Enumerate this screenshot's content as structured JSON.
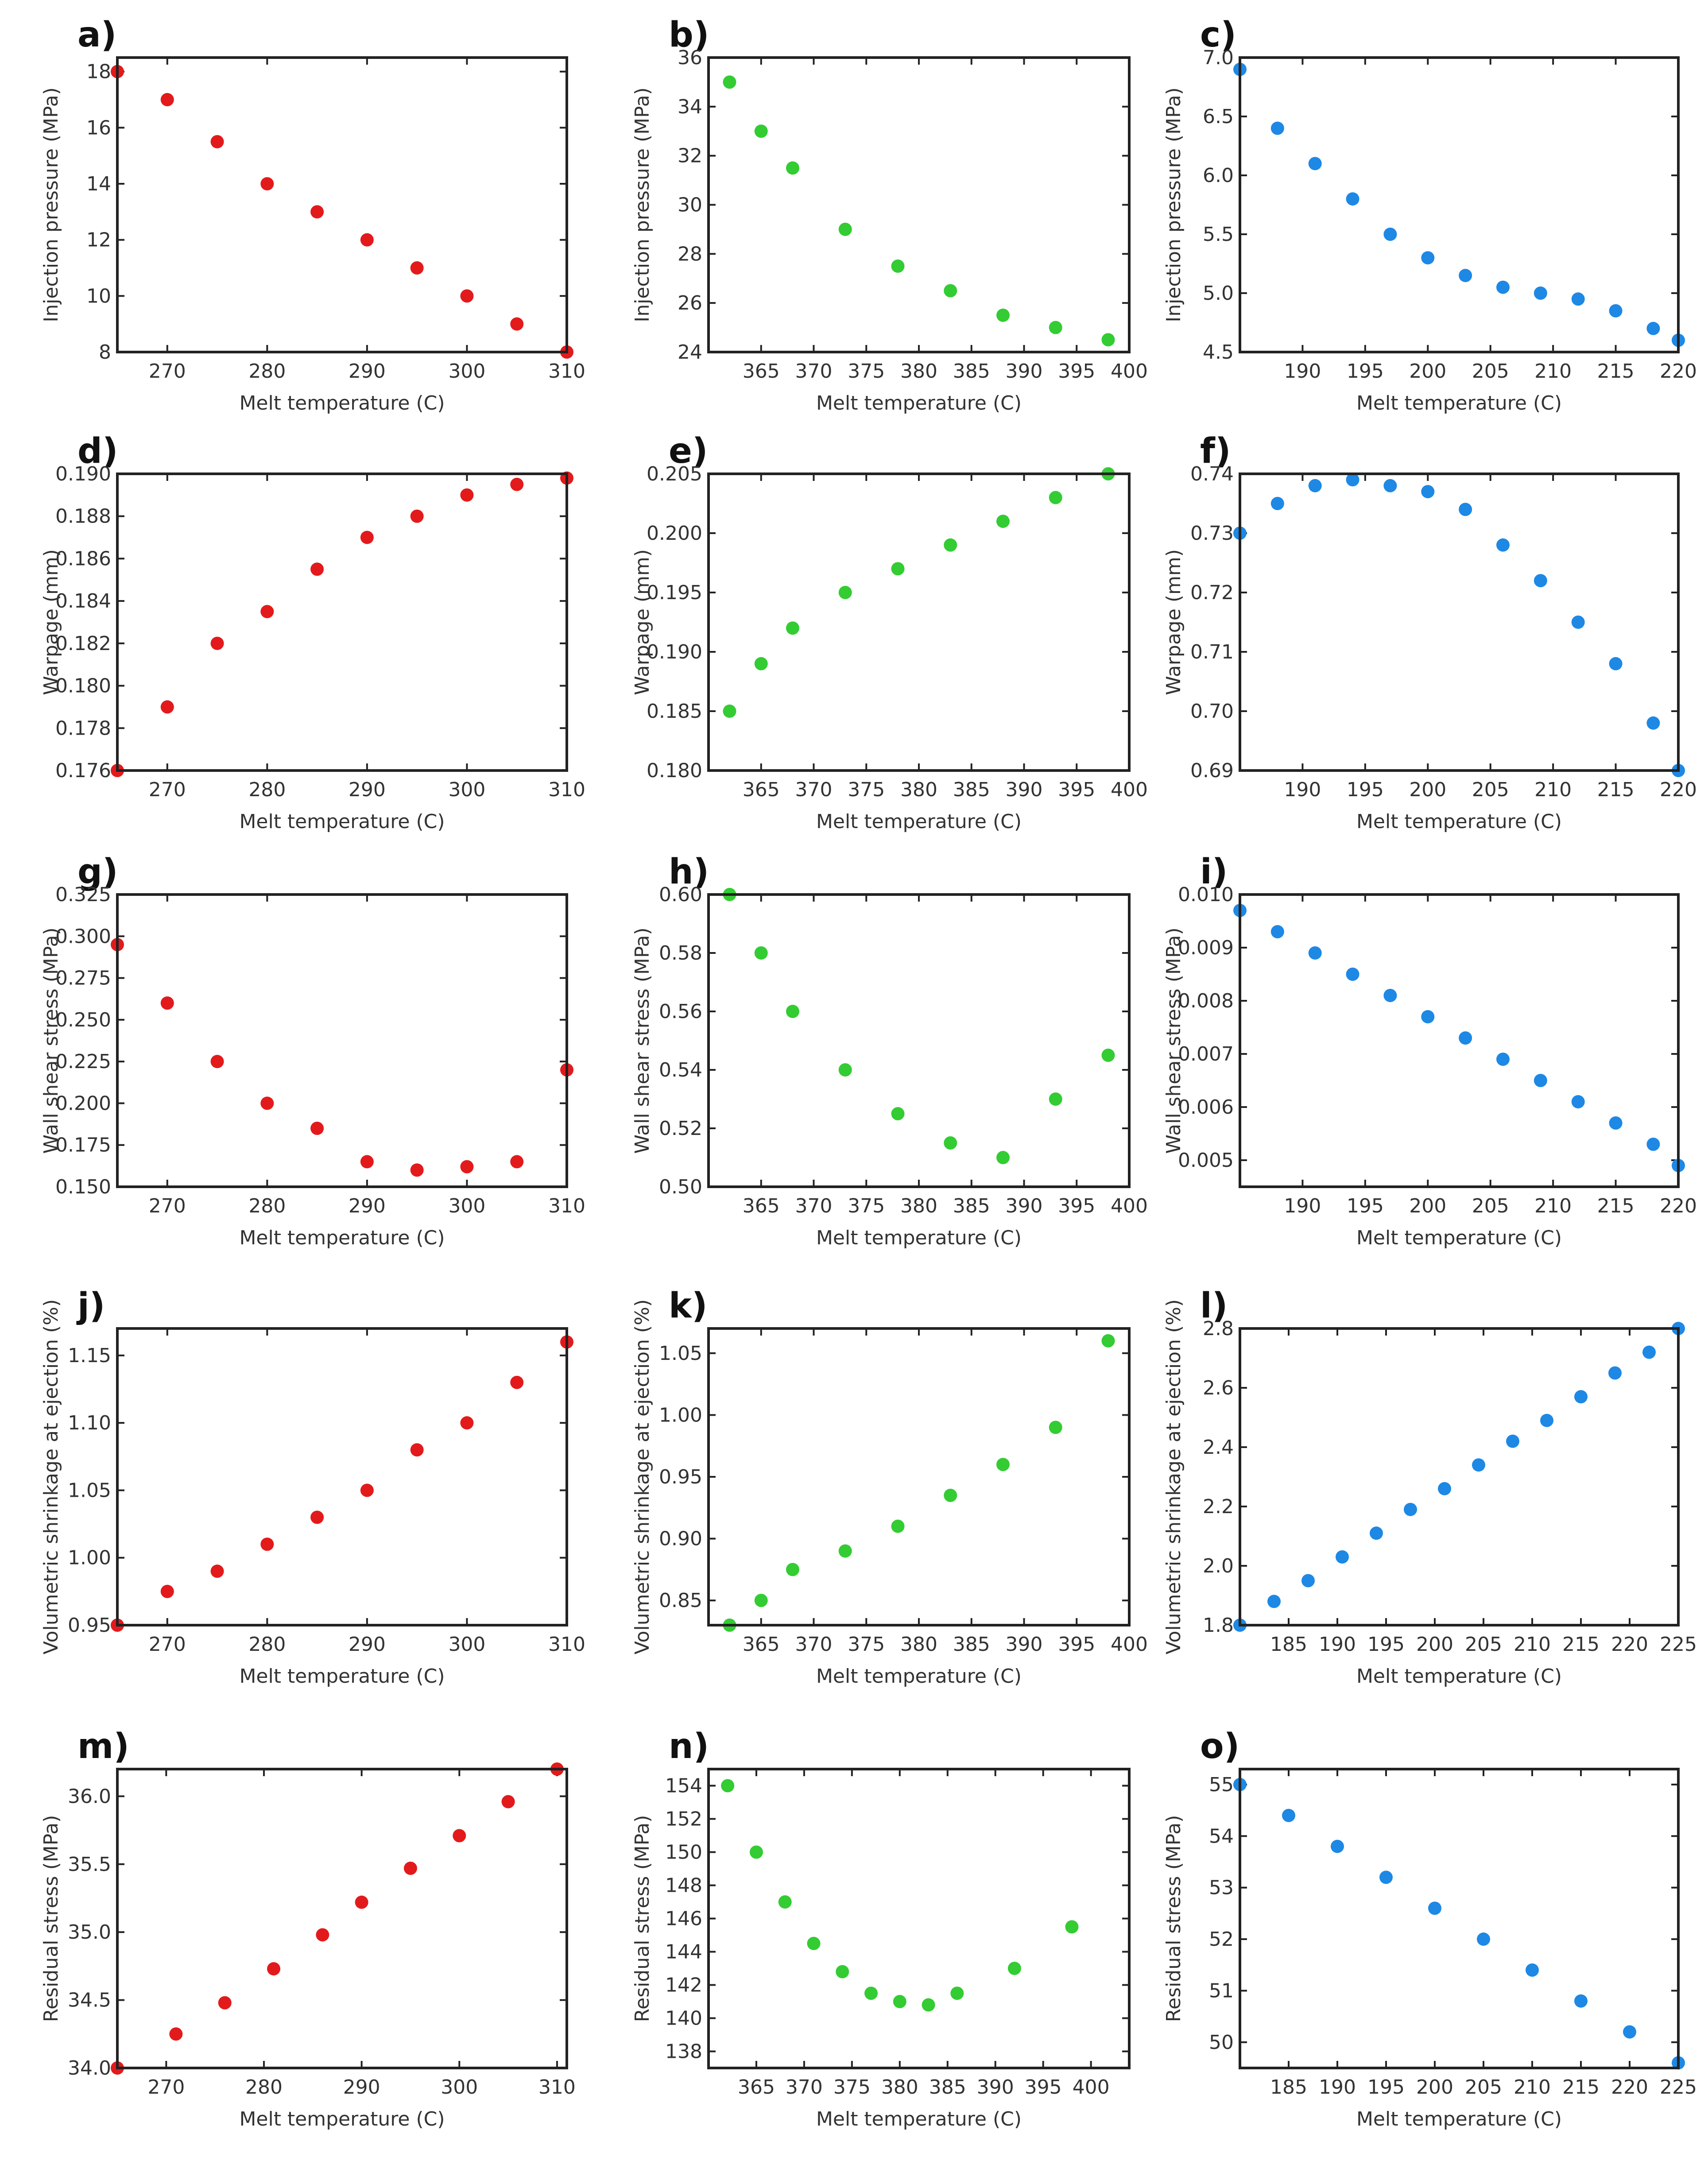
{
  "colors": {
    "series_a": "#e31a1c",
    "series_b": "#33cc33",
    "series_c": "#1e88e5"
  },
  "chart_data": [
    {
      "panel": "a)",
      "type": "scatter",
      "color": "#e31a1c",
      "xlabel": "Melt temperature (C)",
      "ylabel": "Injection pressure (MPa)",
      "xlim": [
        265,
        310
      ],
      "ylim": [
        8,
        18.5
      ],
      "xticks": [
        270,
        280,
        290,
        300,
        310
      ],
      "yticks": [
        8,
        10,
        12,
        14,
        16,
        18
      ],
      "x": [
        265,
        270,
        275,
        280,
        285,
        290,
        295,
        300,
        305,
        310
      ],
      "y": [
        18,
        17,
        15.5,
        14,
        13,
        12,
        11,
        10,
        9,
        8
      ]
    },
    {
      "panel": "b)",
      "type": "scatter",
      "color": "#33cc33",
      "xlabel": "Melt temperature (C)",
      "ylabel": "Injection pressure (MPa)",
      "xlim": [
        360,
        400
      ],
      "ylim": [
        24,
        36
      ],
      "xticks": [
        365,
        370,
        375,
        380,
        385,
        390,
        395,
        400
      ],
      "yticks": [
        24,
        26,
        28,
        30,
        32,
        34,
        36
      ],
      "x": [
        362,
        365,
        368,
        373,
        378,
        383,
        388,
        393,
        398
      ],
      "y": [
        35,
        33,
        31.5,
        29,
        27.5,
        26.5,
        25.5,
        25,
        24.5
      ]
    },
    {
      "panel": "c)",
      "type": "scatter",
      "color": "#1e88e5",
      "xlabel": "Melt temperature (C)",
      "ylabel": "Injection pressure (MPa)",
      "xlim": [
        185,
        220
      ],
      "ylim": [
        4.5,
        7.0
      ],
      "xticks": [
        190,
        195,
        200,
        205,
        210,
        215,
        220
      ],
      "yticks": [
        4.5,
        5.0,
        5.5,
        6.0,
        6.5,
        7.0
      ],
      "x": [
        185,
        188,
        191,
        194,
        197,
        200,
        203,
        206,
        209,
        212,
        215,
        218,
        220
      ],
      "y": [
        6.9,
        6.4,
        6.1,
        5.8,
        5.5,
        5.3,
        5.15,
        5.05,
        5.0,
        4.95,
        4.85,
        4.7,
        4.6
      ]
    },
    {
      "panel": "d)",
      "type": "scatter",
      "color": "#e31a1c",
      "xlabel": "Melt temperature (C)",
      "ylabel": "Warpage (mm)",
      "xlim": [
        265,
        310
      ],
      "ylim": [
        0.176,
        0.19
      ],
      "xticks": [
        270,
        280,
        290,
        300,
        310
      ],
      "yticks": [
        0.176,
        0.178,
        0.18,
        0.182,
        0.184,
        0.186,
        0.188,
        0.19
      ],
      "x": [
        265,
        270,
        275,
        280,
        285,
        290,
        295,
        300,
        305,
        310
      ],
      "y": [
        0.176,
        0.179,
        0.182,
        0.1835,
        0.1855,
        0.187,
        0.188,
        0.189,
        0.1895,
        0.1898
      ]
    },
    {
      "panel": "e)",
      "type": "scatter",
      "color": "#33cc33",
      "xlabel": "Melt temperature (C)",
      "ylabel": "Warpage (mm)",
      "xlim": [
        360,
        400
      ],
      "ylim": [
        0.18,
        0.205
      ],
      "xticks": [
        365,
        370,
        375,
        380,
        385,
        390,
        395,
        400
      ],
      "yticks": [
        0.18,
        0.185,
        0.19,
        0.195,
        0.2,
        0.205
      ],
      "x": [
        362,
        365,
        368,
        373,
        378,
        383,
        388,
        393,
        398
      ],
      "y": [
        0.185,
        0.189,
        0.192,
        0.195,
        0.197,
        0.199,
        0.201,
        0.203,
        0.205
      ]
    },
    {
      "panel": "f)",
      "type": "scatter",
      "color": "#1e88e5",
      "xlabel": "Melt temperature (C)",
      "ylabel": "Warpage (mm)",
      "xlim": [
        185,
        220
      ],
      "ylim": [
        0.69,
        0.74
      ],
      "xticks": [
        190,
        195,
        200,
        205,
        210,
        215,
        220
      ],
      "yticks": [
        0.69,
        0.7,
        0.71,
        0.72,
        0.73,
        0.74
      ],
      "x": [
        185,
        188,
        191,
        194,
        197,
        200,
        203,
        206,
        209,
        212,
        215,
        218,
        220
      ],
      "y": [
        0.73,
        0.735,
        0.738,
        0.739,
        0.738,
        0.737,
        0.734,
        0.728,
        0.722,
        0.715,
        0.708,
        0.698,
        0.69
      ]
    },
    {
      "panel": "g)",
      "type": "scatter",
      "color": "#e31a1c",
      "xlabel": "Melt temperature (C)",
      "ylabel": "Wall shear stress (MPa)",
      "xlim": [
        265,
        310
      ],
      "ylim": [
        0.15,
        0.325
      ],
      "xticks": [
        270,
        280,
        290,
        300,
        310
      ],
      "yticks": [
        0.15,
        0.175,
        0.2,
        0.225,
        0.25,
        0.275,
        0.3,
        0.325
      ],
      "x": [
        265,
        270,
        275,
        280,
        285,
        290,
        295,
        300,
        305,
        310
      ],
      "y": [
        0.295,
        0.26,
        0.225,
        0.2,
        0.185,
        0.165,
        0.16,
        0.162,
        0.165,
        0.22
      ]
    },
    {
      "panel": "h)",
      "type": "scatter",
      "color": "#33cc33",
      "xlabel": "Melt temperature (C)",
      "ylabel": "Wall shear stress (MPa)",
      "xlim": [
        360,
        400
      ],
      "ylim": [
        0.5,
        0.6
      ],
      "xticks": [
        365,
        370,
        375,
        380,
        385,
        390,
        395,
        400
      ],
      "yticks": [
        0.5,
        0.52,
        0.54,
        0.56,
        0.58,
        0.6
      ],
      "x": [
        362,
        365,
        368,
        373,
        378,
        383,
        388,
        393,
        398
      ],
      "y": [
        0.6,
        0.58,
        0.56,
        0.54,
        0.525,
        0.515,
        0.51,
        0.53,
        0.545
      ]
    },
    {
      "panel": "i)",
      "type": "scatter",
      "color": "#1e88e5",
      "xlabel": "Melt temperature (C)",
      "ylabel": "Wall shear stress (MPa)",
      "xlim": [
        185,
        220
      ],
      "ylim": [
        0.0045,
        0.01
      ],
      "xticks": [
        190,
        195,
        200,
        205,
        210,
        215,
        220
      ],
      "yticks": [
        0.005,
        0.006,
        0.007,
        0.008,
        0.009,
        0.01
      ],
      "x": [
        185,
        188,
        191,
        194,
        197,
        200,
        203,
        206,
        209,
        212,
        215,
        218,
        220
      ],
      "y": [
        0.0097,
        0.0093,
        0.0089,
        0.0085,
        0.0081,
        0.0077,
        0.0073,
        0.0069,
        0.0065,
        0.0061,
        0.0057,
        0.0053,
        0.0049
      ]
    },
    {
      "panel": "j)",
      "type": "scatter",
      "color": "#e31a1c",
      "xlabel": "Melt temperature (C)",
      "ylabel": "Volumetric shrinkage at ejection (%)",
      "xlim": [
        265,
        310
      ],
      "ylim": [
        0.95,
        1.17
      ],
      "xticks": [
        270,
        280,
        290,
        300,
        310
      ],
      "yticks": [
        0.95,
        1.0,
        1.05,
        1.1,
        1.15
      ],
      "x": [
        265,
        270,
        275,
        280,
        285,
        290,
        295,
        300,
        305,
        310
      ],
      "y": [
        0.95,
        0.975,
        0.99,
        1.01,
        1.03,
        1.05,
        1.08,
        1.1,
        1.13,
        1.16
      ]
    },
    {
      "panel": "k)",
      "type": "scatter",
      "color": "#33cc33",
      "xlabel": "Melt temperature (C)",
      "ylabel": "Volumetric shrinkage at ejection (%)",
      "xlim": [
        360,
        400
      ],
      "ylim": [
        0.83,
        1.07
      ],
      "xticks": [
        365,
        370,
        375,
        380,
        385,
        390,
        395,
        400
      ],
      "yticks": [
        0.85,
        0.9,
        0.95,
        1.0,
        1.05
      ],
      "x": [
        362,
        365,
        368,
        373,
        378,
        383,
        388,
        393,
        398
      ],
      "y": [
        0.83,
        0.85,
        0.875,
        0.89,
        0.91,
        0.935,
        0.96,
        0.99,
        1.06
      ]
    },
    {
      "panel": "l)",
      "type": "scatter",
      "color": "#1e88e5",
      "xlabel": "Melt temperature (C)",
      "ylabel": "Volumetric shrinkage at ejection (%)",
      "xlim": [
        180,
        225
      ],
      "ylim": [
        1.8,
        2.8
      ],
      "xticks": [
        185,
        190,
        195,
        200,
        205,
        210,
        215,
        220,
        225
      ],
      "yticks": [
        1.8,
        2.0,
        2.2,
        2.4,
        2.6,
        2.8
      ],
      "x": [
        180,
        183.5,
        187,
        190.5,
        194,
        197.5,
        201,
        204.5,
        208,
        211.5,
        215,
        218.5,
        222,
        225
      ],
      "y": [
        1.8,
        1.88,
        1.95,
        2.03,
        2.11,
        2.19,
        2.26,
        2.34,
        2.42,
        2.49,
        2.57,
        2.65,
        2.72,
        2.8
      ]
    },
    {
      "panel": "m)",
      "type": "scatter",
      "color": "#e31a1c",
      "xlabel": "Melt temperature (C)",
      "ylabel": "Residual stress (MPa)",
      "xlim": [
        265,
        311
      ],
      "ylim": [
        34,
        36.2
      ],
      "xticks": [
        270,
        280,
        290,
        300,
        310
      ],
      "yticks": [
        34.0,
        34.5,
        35.0,
        35.5,
        36.0
      ],
      "x": [
        265,
        271,
        276,
        281,
        286,
        290,
        295,
        300,
        305,
        310
      ],
      "y": [
        34.0,
        34.25,
        34.48,
        34.73,
        34.98,
        35.22,
        35.47,
        35.71,
        35.96,
        36.2
      ]
    },
    {
      "panel": "n)",
      "type": "scatter",
      "color": "#33cc33",
      "xlabel": "Melt temperature (C)",
      "ylabel": "Residual stress (MPa)",
      "xlim": [
        360,
        404
      ],
      "ylim": [
        137,
        155
      ],
      "xticks": [
        365,
        370,
        375,
        380,
        385,
        390,
        395,
        400
      ],
      "yticks": [
        138,
        140,
        142,
        144,
        146,
        148,
        150,
        152,
        154
      ],
      "x": [
        362,
        365,
        368,
        371,
        374,
        377,
        380,
        383,
        386,
        392,
        398
      ],
      "y": [
        154,
        150,
        147,
        144.5,
        142.8,
        141.5,
        141,
        140.8,
        141.5,
        143,
        145.5
      ]
    },
    {
      "panel": "o)",
      "type": "scatter",
      "color": "#1e88e5",
      "xlabel": "Melt temperature (C)",
      "ylabel": "Residual stress (MPa)",
      "xlim": [
        180,
        225
      ],
      "ylim": [
        49.5,
        55.3
      ],
      "xticks": [
        185,
        190,
        195,
        200,
        205,
        210,
        215,
        220,
        225
      ],
      "yticks": [
        50,
        51,
        52,
        53,
        54,
        55
      ],
      "x": [
        180,
        185,
        190,
        195,
        200,
        205,
        210,
        215,
        220,
        225
      ],
      "y": [
        55,
        54.4,
        53.8,
        53.2,
        52.6,
        52,
        51.4,
        50.8,
        50.2,
        49.6
      ]
    }
  ]
}
